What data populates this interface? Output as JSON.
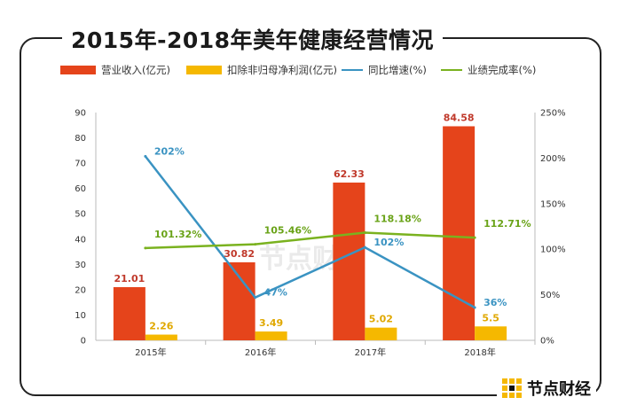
{
  "title": "2015年-2018年美年健康经营情况",
  "brand": "节点财经",
  "watermark": "节点财经",
  "colors": {
    "revenue": "#e5441b",
    "profit": "#f5b800",
    "growth": "#3a93c2",
    "completion": "#7ab21f",
    "axis": "#bbbbbb"
  },
  "chart_data": {
    "type": "bar",
    "categories": [
      "2015年",
      "2016年",
      "2017年",
      "2018年"
    ],
    "ylim": [
      0,
      90
    ],
    "y_ticks": [
      0,
      10,
      20,
      30,
      40,
      50,
      60,
      70,
      80,
      90
    ],
    "y2lim": [
      0,
      250
    ],
    "y2_ticks": [
      "0%",
      "50%",
      "100%",
      "150%",
      "200%",
      "250%"
    ],
    "y2_values": [
      0,
      50,
      100,
      150,
      200,
      250
    ],
    "legend_position": "top",
    "grid": false,
    "bar_series": [
      {
        "name": "营业收入(亿元)",
        "values": [
          21.01,
          30.82,
          62.33,
          84.58
        ],
        "labels": [
          "21.01",
          "30.82",
          "62.33",
          "84.58"
        ]
      },
      {
        "name": "扣除非归母净利润(亿元)",
        "values": [
          2.26,
          3.49,
          5.02,
          5.5
        ],
        "labels": [
          "2.26",
          "3.49",
          "5.02",
          "5.5"
        ]
      }
    ],
    "line_series": [
      {
        "name": "同比增速(%)",
        "values": [
          202,
          47,
          102,
          36
        ],
        "labels": [
          "202%",
          "47%",
          "102%",
          "36%"
        ]
      },
      {
        "name": "业绩完成率(%)",
        "values": [
          101.32,
          105.46,
          118.18,
          112.71
        ],
        "labels": [
          "101.32%",
          "105.46%",
          "118.18%",
          "112.71%"
        ]
      }
    ]
  }
}
